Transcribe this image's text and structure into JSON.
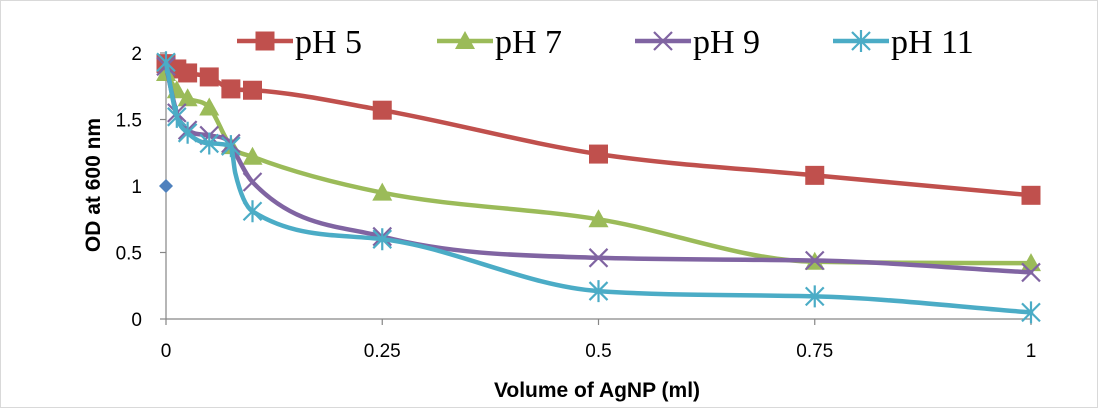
{
  "chart_data": {
    "type": "line",
    "title": "",
    "xlabel": "Volume of AgNP (ml)",
    "ylabel": "OD at 600 nm",
    "xlim": [
      0,
      1
    ],
    "ylim": [
      0,
      2
    ],
    "x_ticks": [
      0,
      0.25,
      0.5,
      0.75,
      1
    ],
    "x_tick_labels": [
      "0",
      "0.25",
      "0.5",
      "0.75",
      "1"
    ],
    "y_ticks": [
      0,
      0.5,
      1,
      1.5,
      2
    ],
    "y_tick_labels": [
      "0",
      "0.5",
      "1",
      "1.5",
      "2"
    ],
    "grid": false,
    "legend_position": "top",
    "smooth": true,
    "series": [
      {
        "name": "pH 5",
        "color": "#C0504D",
        "marker": "square",
        "x": [
          0,
          0.0125,
          0.025,
          0.05,
          0.075,
          0.1,
          0.25,
          0.5,
          0.75,
          1
        ],
        "y": [
          1.92,
          1.88,
          1.85,
          1.82,
          1.73,
          1.72,
          1.57,
          1.24,
          1.08,
          0.93
        ]
      },
      {
        "name": "pH 7",
        "color": "#9BBB59",
        "marker": "triangle",
        "x": [
          0,
          0.0125,
          0.025,
          0.05,
          0.075,
          0.1,
          0.25,
          0.5,
          0.75,
          1
        ],
        "y": [
          1.85,
          1.72,
          1.66,
          1.59,
          1.3,
          1.22,
          0.95,
          0.75,
          0.43,
          0.42
        ]
      },
      {
        "name": "pH 9",
        "color": "#8064A2",
        "marker": "x",
        "x": [
          0,
          0.0125,
          0.025,
          0.05,
          0.075,
          0.08,
          0.1,
          0.25,
          0.5,
          0.75,
          1
        ],
        "y": [
          1.9,
          1.55,
          1.42,
          1.38,
          1.32,
          1.25,
          1.03,
          0.62,
          0.46,
          0.44,
          0.35
        ]
      },
      {
        "name": "pH 11",
        "color": "#4BACC6",
        "marker": "star",
        "x": [
          0,
          0.0125,
          0.025,
          0.05,
          0.075,
          0.08,
          0.1,
          0.25,
          0.5,
          0.75,
          1
        ],
        "y": [
          1.93,
          1.52,
          1.4,
          1.32,
          1.3,
          1.1,
          0.81,
          0.6,
          0.21,
          0.17,
          0.05
        ]
      },
      {
        "name": "",
        "color": "#4F81BD",
        "marker": "diamond",
        "line": false,
        "x": [
          0
        ],
        "y": [
          1
        ]
      }
    ]
  }
}
